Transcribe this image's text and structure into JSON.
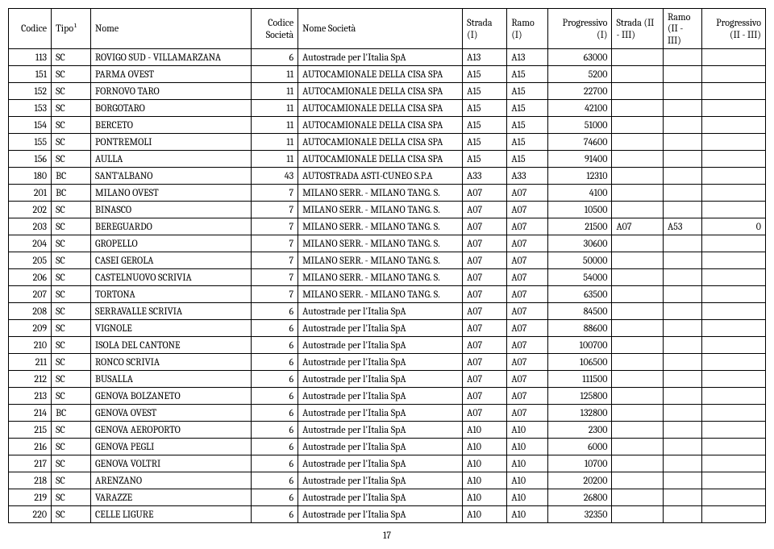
{
  "columns": [
    "Codice",
    "Tipo¹",
    "Nome",
    "Codice Società",
    "Nome Società",
    "Strada (I)",
    "Ramo (I)",
    "Progressivo (I)",
    "Strada (II - III)",
    "Ramo (II - III)",
    "Progressivo (II - III)"
  ],
  "rows": [
    [
      "113",
      "SC",
      "ROVIGO SUD - VILLAMARZANA",
      "6",
      "Autostrade per l'Italia SpA",
      "A13",
      "A13",
      "63000",
      "",
      "",
      ""
    ],
    [
      "151",
      "SC",
      "PARMA OVEST",
      "11",
      "AUTOCAMIONALE DELLA CISA SPA",
      "A15",
      "A15",
      "5200",
      "",
      "",
      ""
    ],
    [
      "152",
      "SC",
      "FORNOVO TARO",
      "11",
      "AUTOCAMIONALE DELLA CISA SPA",
      "A15",
      "A15",
      "22700",
      "",
      "",
      ""
    ],
    [
      "153",
      "SC",
      "BORGOTARO",
      "11",
      "AUTOCAMIONALE DELLA CISA SPA",
      "A15",
      "A15",
      "42100",
      "",
      "",
      ""
    ],
    [
      "154",
      "SC",
      "BERCETO",
      "11",
      "AUTOCAMIONALE DELLA CISA SPA",
      "A15",
      "A15",
      "51000",
      "",
      "",
      ""
    ],
    [
      "155",
      "SC",
      "PONTREMOLI",
      "11",
      "AUTOCAMIONALE DELLA CISA SPA",
      "A15",
      "A15",
      "74600",
      "",
      "",
      ""
    ],
    [
      "156",
      "SC",
      "AULLA",
      "11",
      "AUTOCAMIONALE DELLA CISA SPA",
      "A15",
      "A15",
      "91400",
      "",
      "",
      ""
    ],
    [
      "180",
      "BC",
      "SANT'ALBANO",
      "43",
      "AUTOSTRADA ASTI-CUNEO S.P.A",
      "A33",
      "A33",
      "12310",
      "",
      "",
      ""
    ],
    [
      "201",
      "BC",
      "MILANO OVEST",
      "7",
      "MILANO SERR. - MILANO TANG. S.",
      "A07",
      "A07",
      "4100",
      "",
      "",
      ""
    ],
    [
      "202",
      "SC",
      "BINASCO",
      "7",
      "MILANO SERR. - MILANO TANG. S.",
      "A07",
      "A07",
      "10500",
      "",
      "",
      ""
    ],
    [
      "203",
      "SC",
      "BEREGUARDO",
      "7",
      "MILANO SERR. - MILANO TANG. S.",
      "A07",
      "A07",
      "21500",
      "A07",
      "A53",
      "0"
    ],
    [
      "204",
      "SC",
      "GROPELLO",
      "7",
      "MILANO SERR. - MILANO TANG. S.",
      "A07",
      "A07",
      "30600",
      "",
      "",
      ""
    ],
    [
      "205",
      "SC",
      "CASEI GEROLA",
      "7",
      "MILANO SERR. - MILANO TANG. S.",
      "A07",
      "A07",
      "50000",
      "",
      "",
      ""
    ],
    [
      "206",
      "SC",
      "CASTELNUOVO SCRIVIA",
      "7",
      "MILANO SERR. - MILANO TANG. S.",
      "A07",
      "A07",
      "54000",
      "",
      "",
      ""
    ],
    [
      "207",
      "SC",
      "TORTONA",
      "7",
      "MILANO SERR. - MILANO TANG. S.",
      "A07",
      "A07",
      "63500",
      "",
      "",
      ""
    ],
    [
      "208",
      "SC",
      "SERRAVALLE SCRIVIA",
      "6",
      "Autostrade per l'Italia SpA",
      "A07",
      "A07",
      "84500",
      "",
      "",
      ""
    ],
    [
      "209",
      "SC",
      "VIGNOLE",
      "6",
      "Autostrade per l'Italia SpA",
      "A07",
      "A07",
      "88600",
      "",
      "",
      ""
    ],
    [
      "210",
      "SC",
      "ISOLA DEL CANTONE",
      "6",
      "Autostrade per l'Italia SpA",
      "A07",
      "A07",
      "100700",
      "",
      "",
      ""
    ],
    [
      "211",
      "SC",
      "RONCO SCRIVIA",
      "6",
      "Autostrade per l'Italia SpA",
      "A07",
      "A07",
      "106500",
      "",
      "",
      ""
    ],
    [
      "212",
      "SC",
      "BUSALLA",
      "6",
      "Autostrade per l'Italia SpA",
      "A07",
      "A07",
      "111500",
      "",
      "",
      ""
    ],
    [
      "213",
      "SC",
      "GENOVA BOLZANETO",
      "6",
      "Autostrade per l'Italia SpA",
      "A07",
      "A07",
      "125800",
      "",
      "",
      ""
    ],
    [
      "214",
      "BC",
      "GENOVA OVEST",
      "6",
      "Autostrade per l'Italia SpA",
      "A07",
      "A07",
      "132800",
      "",
      "",
      ""
    ],
    [
      "215",
      "SC",
      "GENOVA AEROPORTO",
      "6",
      "Autostrade per l'Italia SpA",
      "A10",
      "A10",
      "2300",
      "",
      "",
      ""
    ],
    [
      "216",
      "SC",
      "GENOVA PEGLI",
      "6",
      "Autostrade per l'Italia SpA",
      "A10",
      "A10",
      "6000",
      "",
      "",
      ""
    ],
    [
      "217",
      "SC",
      "GENOVA VOLTRI",
      "6",
      "Autostrade per l'Italia SpA",
      "A10",
      "A10",
      "10700",
      "",
      "",
      ""
    ],
    [
      "218",
      "SC",
      "ARENZANO",
      "6",
      "Autostrade per l'Italia SpA",
      "A10",
      "A10",
      "20200",
      "",
      "",
      ""
    ],
    [
      "219",
      "SC",
      "VARAZZE",
      "6",
      "Autostrade per l'Italia SpA",
      "A10",
      "A10",
      "26800",
      "",
      "",
      ""
    ],
    [
      "220",
      "SC",
      "CELLE LIGURE",
      "6",
      "Autostrade per l'Italia SpA",
      "A10",
      "A10",
      "32350",
      "",
      "",
      ""
    ]
  ],
  "page_number": "17",
  "col_classes": [
    "col-codice",
    "col-tipo",
    "col-nome",
    "col-csoc",
    "col-nsoc",
    "col-str1",
    "col-ramo1",
    "col-prog1",
    "col-str2",
    "col-ramo2",
    "col-prog2"
  ]
}
